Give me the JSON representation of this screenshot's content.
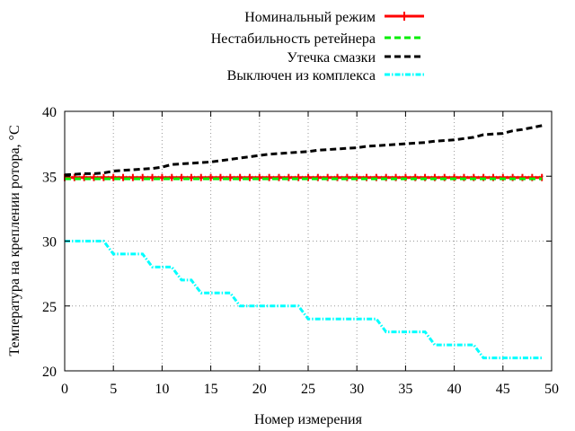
{
  "chart_data": {
    "type": "line",
    "xlabel": "Номер измерения",
    "ylabel": "Температура на креплении ротора, °C",
    "xlim": [
      0,
      50
    ],
    "ylim": [
      20,
      40
    ],
    "xticks": [
      "0",
      "5",
      "10",
      "15",
      "20",
      "25",
      "30",
      "35",
      "40",
      "45",
      "50"
    ],
    "yticks": [
      "20",
      "25",
      "30",
      "35",
      "40"
    ],
    "grid": true,
    "legend_position": "top-center",
    "series": [
      {
        "name": "Номинальный режим",
        "color": "#ff0000",
        "style": "solid-with-markers",
        "x": [
          0,
          1,
          2,
          3,
          4,
          5,
          6,
          7,
          8,
          9,
          10,
          11,
          12,
          13,
          14,
          15,
          16,
          17,
          18,
          19,
          20,
          21,
          22,
          23,
          24,
          25,
          26,
          27,
          28,
          29,
          30,
          31,
          32,
          33,
          34,
          35,
          36,
          37,
          38,
          39,
          40,
          41,
          42,
          43,
          44,
          45,
          46,
          47,
          48,
          49
        ],
        "y": [
          34.9,
          34.9,
          34.9,
          34.9,
          34.9,
          34.9,
          34.9,
          34.9,
          34.9,
          34.9,
          34.9,
          34.9,
          34.9,
          34.9,
          34.9,
          34.9,
          34.9,
          34.9,
          34.9,
          34.9,
          34.9,
          34.9,
          34.9,
          34.9,
          34.9,
          34.9,
          34.9,
          34.9,
          34.9,
          34.9,
          34.9,
          34.9,
          34.9,
          34.9,
          34.9,
          34.9,
          34.9,
          34.9,
          34.9,
          34.9,
          34.9,
          34.9,
          34.9,
          34.9,
          34.9,
          34.9,
          34.9,
          34.9,
          34.9,
          34.9
        ]
      },
      {
        "name": "Нестабильность ретейнера",
        "color": "#00ee00",
        "style": "dashed",
        "x": [
          0,
          1,
          2,
          3,
          4,
          5,
          6,
          7,
          8,
          9,
          10,
          11,
          12,
          13,
          14,
          15,
          16,
          17,
          18,
          19,
          20,
          21,
          22,
          23,
          24,
          25,
          26,
          27,
          28,
          29,
          30,
          31,
          32,
          33,
          34,
          35,
          36,
          37,
          38,
          39,
          40,
          41,
          42,
          43,
          44,
          45,
          46,
          47,
          48,
          49
        ],
        "y": [
          34.8,
          34.8,
          34.8,
          34.8,
          34.8,
          34.8,
          34.8,
          34.8,
          34.8,
          34.8,
          34.8,
          34.8,
          34.8,
          34.8,
          34.8,
          34.8,
          34.8,
          34.8,
          34.8,
          34.8,
          34.8,
          34.8,
          34.8,
          34.8,
          34.8,
          34.8,
          34.8,
          34.8,
          34.8,
          34.8,
          34.8,
          34.8,
          34.8,
          34.8,
          34.8,
          34.8,
          34.8,
          34.8,
          34.8,
          34.8,
          34.8,
          34.8,
          34.8,
          34.8,
          34.8,
          34.8,
          34.8,
          34.8,
          34.8,
          34.8
        ]
      },
      {
        "name": "Утечка смазки",
        "color": "#000000",
        "style": "dashed",
        "x": [
          0,
          1,
          2,
          3,
          4,
          5,
          6,
          7,
          8,
          9,
          10,
          11,
          12,
          13,
          14,
          15,
          16,
          17,
          18,
          19,
          20,
          21,
          22,
          23,
          24,
          25,
          26,
          27,
          28,
          29,
          30,
          31,
          32,
          33,
          34,
          35,
          36,
          37,
          38,
          39,
          40,
          41,
          42,
          43,
          44,
          45,
          46,
          47,
          48,
          49
        ],
        "y": [
          35.1,
          35.15,
          35.2,
          35.2,
          35.25,
          35.4,
          35.45,
          35.5,
          35.55,
          35.6,
          35.7,
          35.9,
          35.95,
          36.0,
          36.05,
          36.1,
          36.2,
          36.3,
          36.4,
          36.5,
          36.6,
          36.7,
          36.75,
          36.8,
          36.85,
          36.9,
          37.0,
          37.05,
          37.1,
          37.15,
          37.2,
          37.3,
          37.35,
          37.4,
          37.45,
          37.5,
          37.55,
          37.6,
          37.7,
          37.75,
          37.8,
          37.9,
          38.0,
          38.2,
          38.25,
          38.3,
          38.5,
          38.6,
          38.75,
          38.9
        ]
      },
      {
        "name": "Выключен из комплекса",
        "color": "#00ffff",
        "style": "dash-dot",
        "x": [
          0,
          1,
          2,
          3,
          4,
          5,
          6,
          7,
          8,
          9,
          10,
          11,
          12,
          13,
          14,
          15,
          16,
          17,
          18,
          19,
          20,
          21,
          22,
          23,
          24,
          25,
          26,
          27,
          28,
          29,
          30,
          31,
          32,
          33,
          34,
          35,
          36,
          37,
          38,
          39,
          40,
          41,
          42,
          43,
          44,
          45,
          46,
          47,
          48,
          49
        ],
        "y": [
          30,
          30,
          30,
          30,
          30,
          29,
          29,
          29,
          29,
          28,
          28,
          28,
          27,
          27,
          26,
          26,
          26,
          26,
          25,
          25,
          25,
          25,
          25,
          25,
          25,
          24,
          24,
          24,
          24,
          24,
          24,
          24,
          24,
          23,
          23,
          23,
          23,
          23,
          22,
          22,
          22,
          22,
          22,
          21,
          21,
          21,
          21,
          21,
          21,
          21
        ]
      }
    ]
  }
}
